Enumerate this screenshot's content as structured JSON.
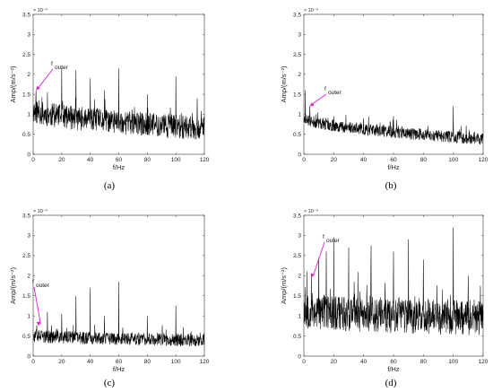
{
  "chart_data": [
    {
      "type": "line",
      "panel_label": "(a)",
      "xlabel": "f/Hz",
      "ylabel": "Amp/(m/s⁻²)",
      "y_multiplier_label": "× 10⁻³",
      "xlim": [
        0,
        120
      ],
      "ylim": [
        0,
        3.5
      ],
      "xticks": [
        0,
        20,
        40,
        60,
        80,
        100,
        120
      ],
      "yticks": [
        0,
        0.5,
        1,
        1.5,
        2,
        2.5,
        3,
        3.5
      ],
      "annotation": {
        "text": "f",
        "subscript": "outer",
        "target_x": 2,
        "target_y": 1.6
      },
      "peaks": [
        [
          2,
          1.6
        ],
        [
          10,
          1.55
        ],
        [
          20,
          2.15
        ],
        [
          30,
          2.1
        ],
        [
          40,
          1.9
        ],
        [
          50,
          1.6
        ],
        [
          60,
          2.15
        ],
        [
          80,
          1.5
        ],
        [
          100,
          1.95
        ],
        [
          115,
          1.4
        ]
      ],
      "series_params": {
        "base_start": 1.1,
        "base_end": 0.65,
        "noise": 0.3,
        "seed": 11
      }
    },
    {
      "type": "line",
      "panel_label": "(b)",
      "xlabel": "f/Hz",
      "ylabel": "Amp/(m/s⁻²)",
      "y_multiplier_label": "× 10⁻³",
      "xlim": [
        0,
        120
      ],
      "ylim": [
        0,
        3.5
      ],
      "xticks": [
        0,
        20,
        40,
        60,
        80,
        100,
        120
      ],
      "yticks": [
        0,
        0.5,
        1,
        1.5,
        2,
        2.5,
        3,
        3.5
      ],
      "annotation": {
        "text": "f",
        "subscript": "outer",
        "target_x": 4,
        "target_y": 1.2
      },
      "peaks": [
        [
          1,
          1.6
        ],
        [
          4,
          1.2
        ],
        [
          8,
          1.0
        ],
        [
          20,
          0.95
        ],
        [
          40,
          0.9
        ],
        [
          60,
          0.95
        ],
        [
          100,
          1.2
        ]
      ],
      "series_params": {
        "base_start": 0.9,
        "base_end": 0.38,
        "noise": 0.15,
        "seed": 23
      }
    },
    {
      "type": "line",
      "panel_label": "(c)",
      "xlabel": "f/Hz",
      "ylabel": "Amp/(m/s⁻²)",
      "y_multiplier_label": "× 10⁻³",
      "xlim": [
        0,
        120
      ],
      "ylim": [
        0,
        3.5
      ],
      "xticks": [
        0,
        20,
        40,
        60,
        80,
        100,
        120
      ],
      "yticks": [
        0,
        0.5,
        1,
        1.5,
        2,
        2.5,
        3,
        3.5
      ],
      "annotation": {
        "text": "f",
        "subscript": "outer",
        "target_x": 4,
        "target_y": 0.75
      },
      "peaks": [
        [
          10,
          1.1
        ],
        [
          20,
          1.05
        ],
        [
          30,
          1.5
        ],
        [
          40,
          1.7
        ],
        [
          50,
          1.0
        ],
        [
          60,
          1.85
        ],
        [
          80,
          1.0
        ],
        [
          100,
          1.25
        ]
      ],
      "series_params": {
        "base_start": 0.5,
        "base_end": 0.4,
        "noise": 0.16,
        "seed": 37
      }
    },
    {
      "type": "line",
      "panel_label": "(d)",
      "xlabel": "f/Hz",
      "ylabel": "Amp/(m/s⁻²)",
      "y_multiplier_label": "× 10⁻³",
      "xlim": [
        0,
        120
      ],
      "ylim": [
        0,
        3.5
      ],
      "xticks": [
        0,
        20,
        40,
        60,
        80,
        100,
        120
      ],
      "yticks": [
        0,
        0.5,
        1,
        1.5,
        2,
        2.5,
        3,
        3.5
      ],
      "annotation": {
        "text": "f",
        "subscript": "outer",
        "target_x": 5,
        "target_y": 1.95
      },
      "peaks": [
        [
          2,
          2.1
        ],
        [
          5,
          2.0
        ],
        [
          10,
          2.45
        ],
        [
          15,
          2.6
        ],
        [
          20,
          2.95
        ],
        [
          30,
          2.7
        ],
        [
          45,
          2.75
        ],
        [
          60,
          2.6
        ],
        [
          70,
          2.9
        ],
        [
          80,
          2.4
        ],
        [
          100,
          3.2
        ],
        [
          110,
          2.0
        ]
      ],
      "series_params": {
        "base_start": 1.15,
        "base_end": 0.95,
        "noise": 0.45,
        "seed": 53
      }
    }
  ]
}
